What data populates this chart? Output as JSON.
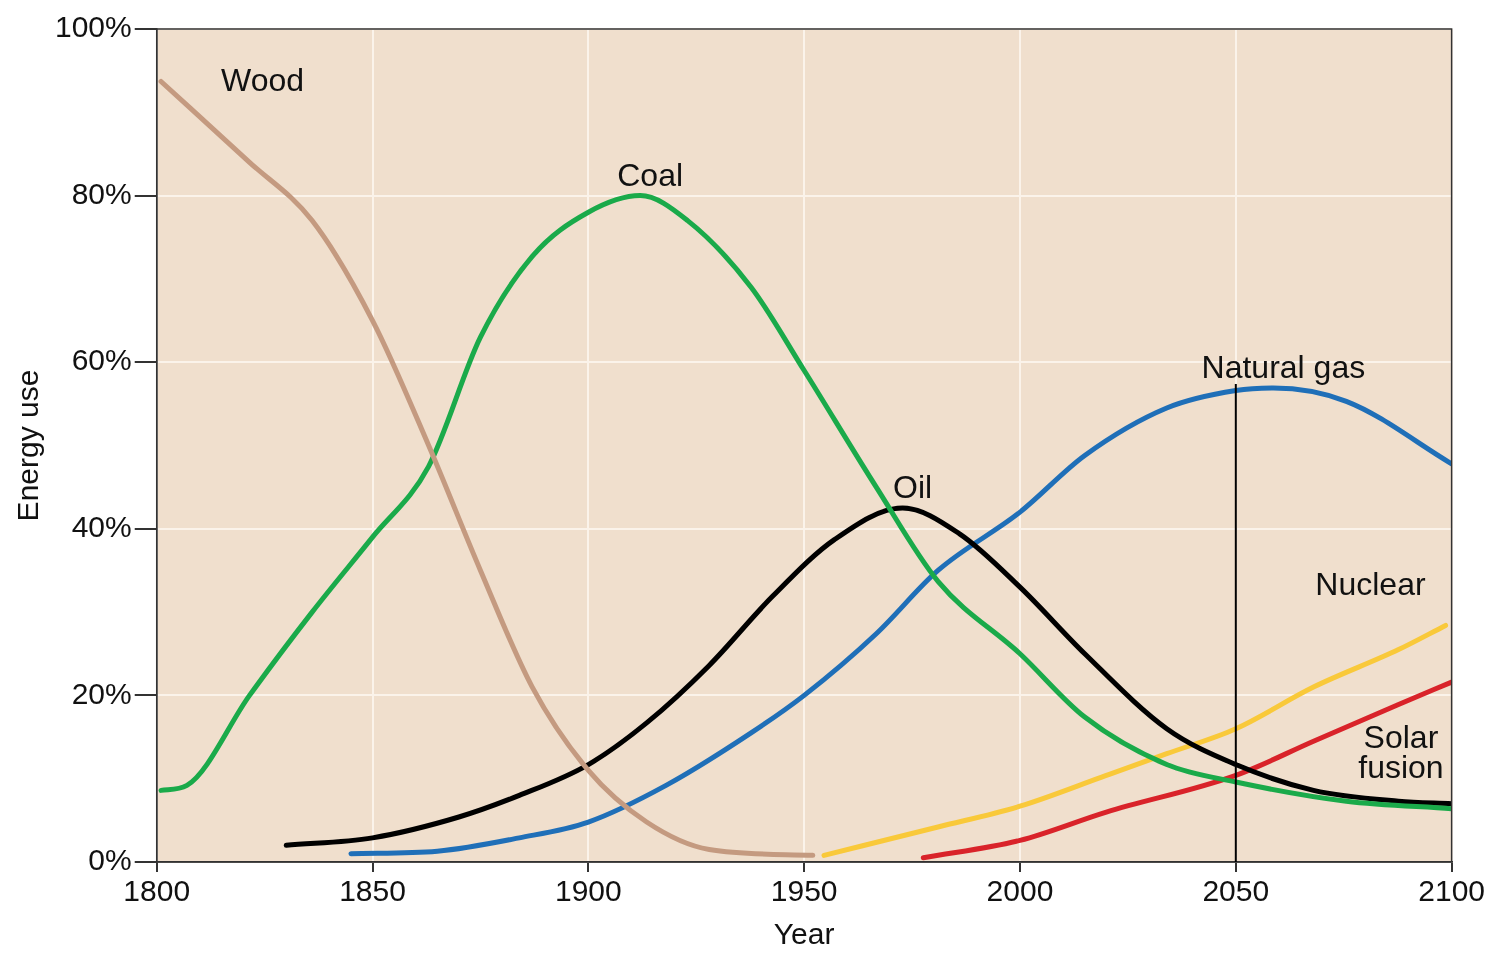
{
  "chart_data": {
    "type": "line",
    "xlabel": "Year",
    "ylabel": "Energy use",
    "xlim": [
      1800,
      2100
    ],
    "xticks": [
      1800,
      1850,
      1900,
      1950,
      2000,
      2050,
      2100
    ],
    "ylim": [
      0,
      100
    ],
    "yticks": [
      {
        "value": 0,
        "label": "0%"
      },
      {
        "value": 20,
        "label": "20%"
      },
      {
        "value": 40,
        "label": "40%"
      },
      {
        "value": 60,
        "label": "60%"
      },
      {
        "value": 80,
        "label": "80%"
      },
      {
        "value": 100,
        "label": "100%"
      }
    ],
    "grid": true,
    "legend": false,
    "marker": "none",
    "line_style": "solid",
    "ref_lines": [
      {
        "axis": "x",
        "value": 2050,
        "color": "#000000"
      }
    ],
    "series": [
      {
        "name": "Wood",
        "color": "#c49a80",
        "x": [
          1801,
          1821.5,
          1836,
          1850,
          1863,
          1875,
          1887,
          1900,
          1913.5,
          1928,
          1952
        ],
        "values": [
          93.7,
          84,
          77,
          65,
          50,
          35,
          21,
          11,
          4.8,
          1.5,
          0.8
        ]
      },
      {
        "name": "Coal",
        "color": "#1aaa4a",
        "x": [
          1801,
          1807,
          1821.5,
          1836,
          1850,
          1863,
          1875,
          1887,
          1900,
          1912,
          1923,
          1937.7,
          1950,
          1966.7,
          1981,
          2000,
          2015,
          2034,
          2050,
          2075.6,
          2100
        ],
        "values": [
          8.6,
          9.2,
          20,
          30,
          39,
          47.5,
          63,
          72.7,
          78,
          80,
          77,
          69,
          59,
          45,
          33.7,
          25,
          17.4,
          11.7,
          9.6,
          7.3,
          6.4
        ]
      },
      {
        "name": "Oil",
        "color": "#000000",
        "x": [
          1830,
          1850,
          1870,
          1884,
          1900,
          1913.5,
          1928,
          1942.5,
          1957,
          1972.8,
          1986,
          2000,
          2015,
          2034,
          2050,
          2068,
          2087.7,
          2100
        ],
        "values": [
          2,
          2.9,
          5.4,
          8,
          11.7,
          16.7,
          23.6,
          31.8,
          38.7,
          42.5,
          39.4,
          33,
          25,
          16,
          11.7,
          8.6,
          7.3,
          7
        ]
      },
      {
        "name": "Natural gas",
        "color": "#1f6fb8",
        "x": [
          1845,
          1865,
          1884,
          1900,
          1918,
          1937.7,
          1950,
          1966.7,
          1981,
          2000,
          2015,
          2034,
          2050,
          2058.7,
          2075.6,
          2100
        ],
        "values": [
          1,
          1.3,
          2.9,
          4.8,
          9.2,
          15.5,
          20,
          27.4,
          35,
          42,
          48.8,
          54.5,
          56.6,
          56.9,
          55.3,
          47.8
        ]
      },
      {
        "name": "Nuclear",
        "color": "#f9c93a",
        "x": [
          1954.6,
          1981,
          2000,
          2020,
          2034,
          2050,
          2068,
          2087.7,
          2098.6
        ],
        "values": [
          0.8,
          4.2,
          6.7,
          10.4,
          13,
          16,
          21,
          25.5,
          28.4
        ]
      },
      {
        "name": "Solar fusion",
        "color": "#d9232a",
        "x": [
          1977.6,
          2000,
          2020,
          2050,
          2068,
          2087.7,
          2100
        ],
        "values": [
          0.5,
          2.6,
          6,
          10.4,
          14.5,
          18.9,
          21.6
        ]
      }
    ]
  }
}
